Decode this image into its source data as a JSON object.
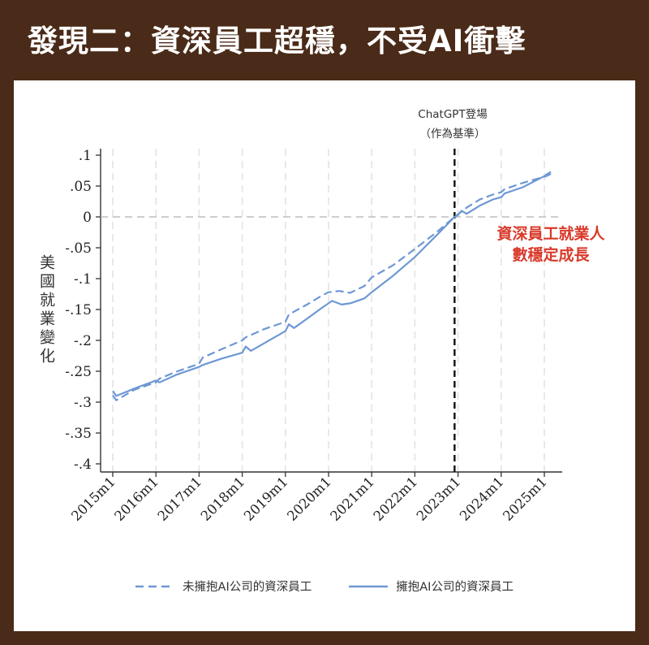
{
  "header": {
    "title": "發現二：資深員工超穩，不受AI衝擊"
  },
  "annotations": {
    "event_line": "ChatGPT登場",
    "event_sub": "（作為基準）",
    "note_line1": "資深員工就業人",
    "note_line2": "數穩定成長"
  },
  "colors": {
    "line": "#6e98d4",
    "note": "#d93a2b",
    "background": "#4a2a18"
  },
  "chart_data": {
    "type": "line",
    "ylabel": "美國就業變化",
    "ylim": [
      -0.4,
      0.1
    ],
    "yticks": [
      0.1,
      0.05,
      0,
      -0.05,
      -0.1,
      -0.15,
      -0.2,
      -0.25,
      -0.3,
      -0.35,
      -0.4
    ],
    "ytick_labels": [
      ".1",
      ".05",
      "0",
      "-.05",
      "-.1",
      "-.15",
      "-.2",
      "-.25",
      "-.3",
      "-.35",
      "-.4"
    ],
    "xlim": [
      2015,
      2025.2
    ],
    "xticks": [
      2015,
      2016,
      2017,
      2018,
      2019,
      2020,
      2021,
      2022,
      2023,
      2024,
      2025
    ],
    "xtick_labels": [
      "2015m1",
      "2016m1",
      "2017m1",
      "2018m1",
      "2019m1",
      "2020m1",
      "2021m1",
      "2022m1",
      "2023m1",
      "2024m1",
      "2025m1"
    ],
    "event_x": 2022.92,
    "grid": "vertical-dashed",
    "legend_position": "bottom",
    "series": [
      {
        "name": "未擁抱AI公司的資深員工",
        "style": "dashed",
        "x": [
          2015.0,
          2015.08,
          2015.5,
          2016.0,
          2016.08,
          2016.5,
          2017.0,
          2017.08,
          2017.5,
          2018.0,
          2018.08,
          2018.5,
          2019.0,
          2019.08,
          2019.5,
          2019.83,
          2020.0,
          2020.25,
          2020.5,
          2020.83,
          2021.0,
          2021.5,
          2022.0,
          2022.5,
          2022.92,
          2023.2,
          2023.5,
          2023.8,
          2024.0,
          2024.08,
          2024.5,
          2025.0,
          2025.08,
          2025.15
        ],
        "y": [
          -0.289,
          -0.297,
          -0.28,
          -0.268,
          -0.262,
          -0.25,
          -0.238,
          -0.228,
          -0.215,
          -0.2,
          -0.195,
          -0.182,
          -0.17,
          -0.158,
          -0.142,
          -0.128,
          -0.122,
          -0.12,
          -0.123,
          -0.112,
          -0.098,
          -0.078,
          -0.052,
          -0.025,
          0.0,
          0.015,
          0.028,
          0.036,
          0.04,
          0.045,
          0.055,
          0.065,
          0.067,
          0.07
        ]
      },
      {
        "name": "擁抱AI公司的資深員工",
        "style": "solid",
        "x": [
          2015.0,
          2015.08,
          2015.5,
          2016.0,
          2016.08,
          2016.5,
          2017.0,
          2017.08,
          2017.5,
          2018.0,
          2018.08,
          2018.2,
          2018.5,
          2019.0,
          2019.08,
          2019.2,
          2019.5,
          2019.83,
          2020.0,
          2020.08,
          2020.3,
          2020.5,
          2020.83,
          2021.0,
          2021.5,
          2022.0,
          2022.5,
          2022.92,
          2023.0,
          2023.08,
          2023.2,
          2023.5,
          2023.8,
          2024.0,
          2024.08,
          2024.5,
          2025.0,
          2025.08,
          2025.15
        ],
        "y": [
          -0.282,
          -0.29,
          -0.278,
          -0.265,
          -0.268,
          -0.255,
          -0.243,
          -0.24,
          -0.23,
          -0.22,
          -0.21,
          -0.217,
          -0.205,
          -0.185,
          -0.174,
          -0.18,
          -0.165,
          -0.148,
          -0.14,
          -0.136,
          -0.142,
          -0.14,
          -0.132,
          -0.122,
          -0.095,
          -0.065,
          -0.03,
          0.0,
          0.003,
          0.01,
          0.005,
          0.018,
          0.028,
          0.032,
          0.038,
          0.048,
          0.066,
          0.07,
          0.073
        ]
      }
    ]
  }
}
